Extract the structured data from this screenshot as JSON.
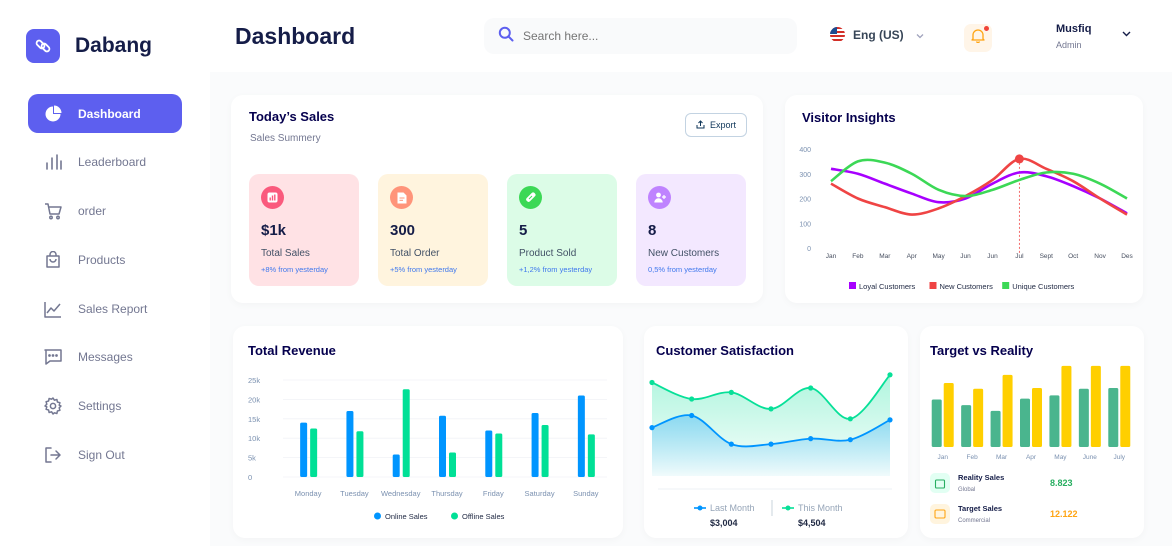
{
  "app": {
    "name": "Dabang"
  },
  "sidebar": {
    "items": [
      {
        "label": "Dashboard",
        "icon": "pie-chart-icon",
        "active": true
      },
      {
        "label": "Leaderboard",
        "icon": "bar-chart-icon",
        "active": false
      },
      {
        "label": "order",
        "icon": "cart-icon",
        "active": false
      },
      {
        "label": "Products",
        "icon": "bag-icon",
        "active": false
      },
      {
        "label": "Sales Report",
        "icon": "line-chart-icon",
        "active": false
      },
      {
        "label": "Messages",
        "icon": "message-icon",
        "active": false
      },
      {
        "label": "Settings",
        "icon": "gear-icon",
        "active": false
      },
      {
        "label": "Sign Out",
        "icon": "sign-out-icon",
        "active": false
      }
    ]
  },
  "header": {
    "title": "Dashboard",
    "search_placeholder": "Search here...",
    "language": "Eng (US)",
    "user": {
      "name": "Musfiq",
      "role": "Admin"
    }
  },
  "todays_sales": {
    "title": "Today’s Sales",
    "subtitle": "Sales Summery",
    "export_label": "Export",
    "stats": [
      {
        "value": "$1k",
        "label": "Total Sales",
        "change": "+8% from yesterday",
        "bg": "#ffe2e5",
        "icon_bg": "#fa5a7d",
        "icon": "chart-icon"
      },
      {
        "value": "300",
        "label": "Total Order",
        "change": "+5% from yesterday",
        "bg": "#fff4de",
        "icon_bg": "#ff947a",
        "icon": "document-icon"
      },
      {
        "value": "5",
        "label": "Product Sold",
        "change": "+1,2% from yesterday",
        "bg": "#dcfce7",
        "icon_bg": "#3cd856",
        "icon": "tag-icon"
      },
      {
        "value": "8",
        "label": "New Customers",
        "change": "0,5% from yesterday",
        "bg": "#f3e8ff",
        "icon_bg": "#bf83ff",
        "icon": "add-user-icon"
      }
    ]
  },
  "chart_data": [
    {
      "type": "line",
      "title": "Visitor Insights",
      "x": [
        "Jan",
        "Feb",
        "Mar",
        "Apr",
        "May",
        "Jun",
        "Jun",
        "Jul",
        "Sept",
        "Oct",
        "Nov",
        "Des"
      ],
      "y_ticks": [
        "400",
        "300",
        "200",
        "100",
        "0"
      ],
      "ylim": [
        0,
        400
      ],
      "series": [
        {
          "name": "Loyal Customers",
          "color": "#a700ff",
          "values": [
            320,
            300,
            260,
            220,
            185,
            200,
            260,
            305,
            290,
            250,
            200,
            140
          ]
        },
        {
          "name": "New Customers",
          "color": "#ef4444",
          "values": [
            260,
            200,
            165,
            135,
            160,
            210,
            275,
            360,
            320,
            270,
            200,
            135
          ]
        },
        {
          "name": "Unique Customers",
          "color": "#3cd856",
          "values": [
            270,
            350,
            345,
            300,
            235,
            210,
            235,
            275,
            305,
            300,
            260,
            200
          ]
        }
      ],
      "highlight": {
        "x": "Jul",
        "value": 360
      }
    },
    {
      "type": "bar",
      "title": "Total Revenue",
      "categories": [
        "Monday",
        "Tuesday",
        "Wednesday",
        "Thursday",
        "Friday",
        "Saturday",
        "Sunday"
      ],
      "y_ticks": [
        "25k",
        "20k",
        "15k",
        "10k",
        "5k",
        "0"
      ],
      "ylim": [
        0,
        25000
      ],
      "series": [
        {
          "name": "Online Sales",
          "color": "#0095ff",
          "values": [
            14000,
            17000,
            5800,
            15800,
            12000,
            16500,
            21000
          ]
        },
        {
          "name": "Offline Sales",
          "color": "#00e096",
          "values": [
            12500,
            11800,
            22600,
            6300,
            11200,
            13400,
            11000
          ]
        }
      ]
    },
    {
      "type": "area",
      "title": "Customer Satisfaction",
      "x": [
        "1",
        "2",
        "3",
        "4",
        "5",
        "6",
        "7"
      ],
      "ylim": [
        0,
        100
      ],
      "series": [
        {
          "name": "Last Month",
          "color": "#0095ff",
          "values": [
            44,
            55,
            29,
            29,
            34,
            33,
            51
          ],
          "total": "$3,004"
        },
        {
          "name": "This Month",
          "color": "#07e098",
          "values": [
            85,
            70,
            76,
            61,
            80,
            52,
            92
          ],
          "total": "$4,504"
        }
      ]
    },
    {
      "type": "bar",
      "title": "Target vs Reality",
      "categories": [
        "Jan",
        "Feb",
        "Mar",
        "Apr",
        "May",
        "June",
        "July"
      ],
      "ylim": [
        0,
        100
      ],
      "series": [
        {
          "name": "Reality Sales",
          "color": "#4ab58e",
          "values": [
            58,
            51,
            44,
            59,
            63,
            71,
            72
          ]
        },
        {
          "name": "Target Sales",
          "color": "#ffcf00",
          "values": [
            78,
            71,
            88,
            72,
            99,
            99,
            99
          ]
        }
      ]
    }
  ],
  "target_legend": [
    {
      "label": "Reality Sales",
      "sub": "Global",
      "value": "8.823",
      "color": "#27ae60",
      "icon_bg": "#e2fff3",
      "icon": "bag-icon"
    },
    {
      "label": "Target Sales",
      "sub": "Commercial",
      "value": "12.122",
      "color": "#ffa412",
      "icon_bg": "#fff4de",
      "icon": "ticket-icon"
    }
  ]
}
